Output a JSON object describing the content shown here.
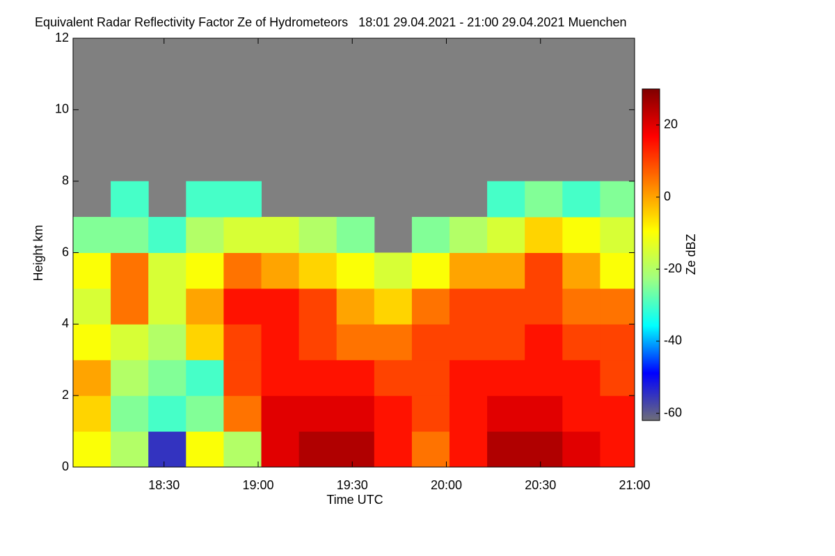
{
  "chart_data": {
    "type": "heatmap",
    "title": "Equivalent Radar Reflectivity Factor Ze of Hydrometeors   18:01 29.04.2021 - 21:00 29.04.2021 Muenchen",
    "xlabel": "Time UTC",
    "ylabel": "Height km",
    "colorbar_label": "Ze dBZ",
    "xlim": [
      "18:01",
      "21:00"
    ],
    "xticks": [
      "18:30",
      "19:00",
      "19:30",
      "20:00",
      "20:30",
      "21:00"
    ],
    "ylim": [
      0,
      12
    ],
    "yticks": [
      0,
      2,
      4,
      6,
      8,
      10,
      12
    ],
    "zlim": [
      -62,
      30
    ],
    "zticks": [
      20,
      0,
      -20,
      -40,
      -60
    ],
    "colormap": [
      "#6e6e78",
      "#0000ff",
      "#00ffff",
      "#a0ff80",
      "#ffff00",
      "#ff8000",
      "#ff0000",
      "#800000"
    ],
    "background": "#808080",
    "x_bins": [
      "18:01",
      "18:13",
      "18:25",
      "18:37",
      "18:49",
      "19:01",
      "19:13",
      "19:25",
      "19:37",
      "19:49",
      "20:01",
      "20:13",
      "20:25",
      "20:37",
      "20:49",
      "21:00"
    ],
    "y_bins": [
      0,
      1,
      2,
      3,
      4,
      5,
      6,
      7,
      8,
      9,
      10,
      11,
      12
    ],
    "values": [
      [
        -10,
        -5,
        0,
        -10,
        -15,
        -10,
        -25,
        null,
        null,
        null,
        null,
        null
      ],
      [
        -20,
        -25,
        -20,
        -15,
        5,
        5,
        -25,
        -30,
        null,
        null,
        null,
        null
      ],
      [
        -55,
        -30,
        -25,
        -20,
        -15,
        -15,
        -30,
        null,
        null,
        null,
        null,
        null
      ],
      [
        -10,
        -25,
        -30,
        -5,
        0,
        -10,
        -20,
        -30,
        null,
        null,
        null,
        null
      ],
      [
        -20,
        5,
        10,
        10,
        15,
        5,
        -15,
        -30,
        null,
        null,
        null,
        null
      ],
      [
        20,
        20,
        15,
        15,
        15,
        0,
        -15,
        null,
        null,
        null,
        null,
        null
      ],
      [
        25,
        20,
        15,
        10,
        10,
        -5,
        -20,
        null,
        null,
        null,
        null,
        null
      ],
      [
        25,
        20,
        15,
        5,
        0,
        -10,
        -25,
        null,
        null,
        null,
        null,
        null
      ],
      [
        15,
        15,
        10,
        5,
        -5,
        -15,
        null,
        null,
        null,
        null,
        null,
        null
      ],
      [
        5,
        10,
        10,
        10,
        5,
        -10,
        -25,
        null,
        null,
        null,
        null,
        null
      ],
      [
        15,
        15,
        15,
        10,
        10,
        0,
        -20,
        null,
        null,
        null,
        null,
        null
      ],
      [
        25,
        20,
        15,
        10,
        10,
        0,
        -15,
        -30,
        null,
        null,
        null,
        null
      ],
      [
        25,
        20,
        15,
        15,
        10,
        10,
        -5,
        -25,
        null,
        null,
        null,
        null
      ],
      [
        20,
        15,
        15,
        10,
        5,
        0,
        -10,
        -30,
        null,
        null,
        null,
        null
      ],
      [
        15,
        15,
        10,
        10,
        5,
        -10,
        -15,
        -25,
        null,
        null,
        null,
        null
      ]
    ]
  }
}
